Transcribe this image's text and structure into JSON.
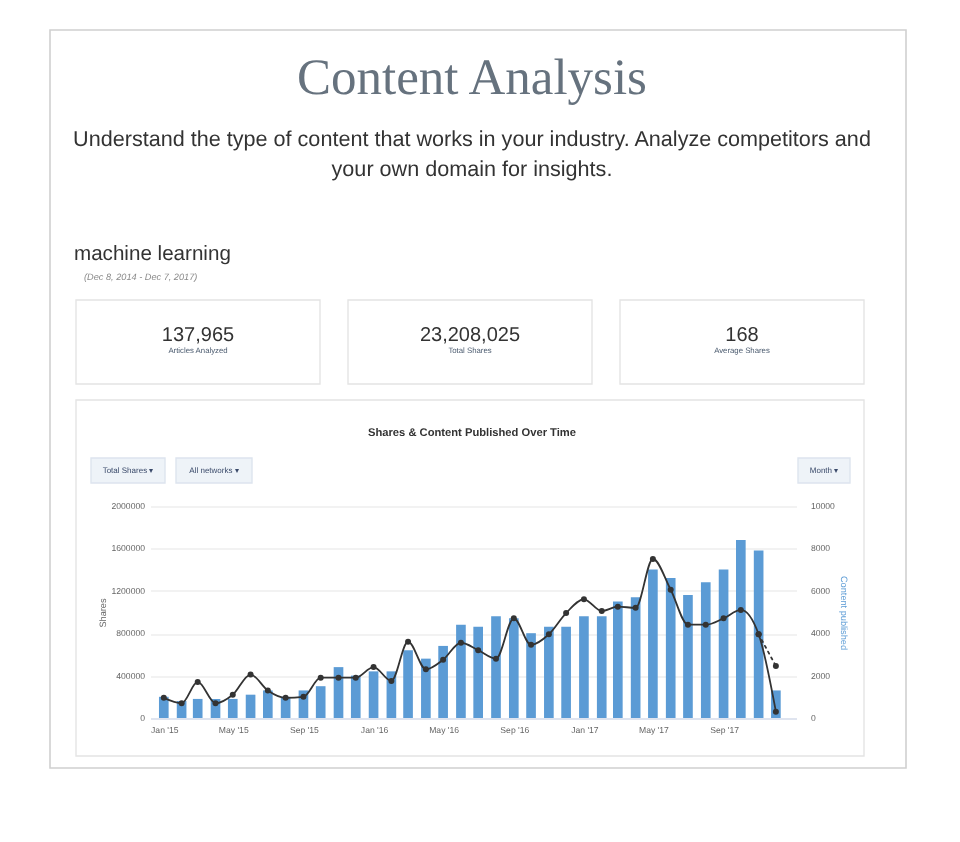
{
  "chart_data": {
    "type": "bar",
    "title": "Content Analysis",
    "subtitle": "Understand the type of content that works in your industry. Analyze competitors and your own domain for insights.",
    "ylabel": "Shares",
    "y2label": "Content published",
    "annotations": [
      "machine learning",
      "(Dec 8, 2014 - Dec 7, 2017)",
      "137,965",
      "Articles Analyzed",
      "23,208,025",
      "Total Shares",
      "168",
      "Average Shares",
      "Shares & Content Published Over Time",
      "Total Shares ▾",
      "All networks ▾",
      "Month ▾"
    ],
    "x": [
      "2015-01",
      "2015-02",
      "2015-03",
      "2015-04",
      "2015-05",
      "2015-06",
      "2015-07",
      "2015-08",
      "2015-09",
      "2015-10",
      "2015-11",
      "2015-12",
      "2016-01",
      "2016-02",
      "2016-03",
      "2016-04",
      "2016-05",
      "2016-06",
      "2016-07",
      "2016-08",
      "2016-09",
      "2016-10",
      "2016-11",
      "2016-12",
      "2017-01",
      "2017-02",
      "2017-03",
      "2017-04",
      "2017-05",
      "2017-06",
      "2017-07",
      "2017-08",
      "2017-09",
      "2017-10",
      "2017-11",
      "2017-12"
    ],
    "xlim": [
      "2014-12-08",
      "2018-01-05"
    ],
    "xticks": [
      {
        "value": "2015-01",
        "label": "Jan '15"
      },
      {
        "value": "2015-05",
        "label": "May '15"
      },
      {
        "value": "2015-09",
        "label": "Sep '15"
      },
      {
        "value": "2016-01",
        "label": "Jan '16"
      },
      {
        "value": "2016-05",
        "label": "May '16"
      },
      {
        "value": "2016-09",
        "label": "Sep '16"
      },
      {
        "value": "2017-01",
        "label": "Jan '17"
      },
      {
        "value": "2017-05",
        "label": "May '17"
      },
      {
        "value": "2017-09",
        "label": "Sep '17"
      }
    ],
    "ylim": [
      0,
      2000000
    ],
    "yticks": [
      0,
      400000,
      800000,
      1200000,
      1600000,
      2000000
    ],
    "y2lim": [
      0,
      10000
    ],
    "y2ticks": [
      0,
      2000,
      4000,
      6000,
      8000,
      10000
    ],
    "grid": "y",
    "marker": "circle",
    "series": [
      {
        "axis": "y2",
        "color": "#5b9bd5",
        "values": [
          1000,
          800,
          900,
          900,
          900,
          1100,
          1300,
          1000,
          1300,
          1500,
          2400,
          2000,
          2200,
          2200,
          3200,
          2800,
          3400,
          4400,
          4300,
          4800,
          4700,
          4000,
          4300,
          4300,
          4800,
          4800,
          5500,
          5700,
          7000,
          6600,
          5800,
          6400,
          7000,
          8400,
          7900,
          1300
        ]
      },
      {
        "type": "line",
        "color": "#333333",
        "values": [
          190000,
          140000,
          340000,
          140000,
          220000,
          410000,
          260000,
          190000,
          200000,
          380000,
          380000,
          380000,
          480000,
          350000,
          720000,
          460000,
          550000,
          710000,
          640000,
          560000,
          940000,
          690000,
          790000,
          990000,
          1120000,
          1010000,
          1050000,
          1040000,
          1500000,
          1210000,
          880000,
          880000,
          940000,
          1020000,
          790000,
          60000
        ]
      },
      {
        "type": "line",
        "color": "#333333",
        "x": [
          "2017-11",
          "2017-12"
        ],
        "values": [
          790000,
          490000
        ],
        "line_style": "dotted"
      }
    ]
  }
}
